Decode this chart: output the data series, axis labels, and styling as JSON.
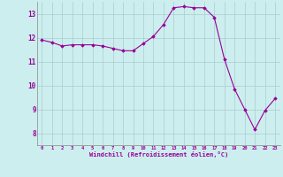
{
  "x": [
    0,
    1,
    2,
    3,
    4,
    5,
    6,
    7,
    8,
    9,
    10,
    11,
    12,
    13,
    14,
    15,
    16,
    17,
    18,
    19,
    20,
    21,
    22,
    23
  ],
  "y": [
    11.9,
    11.8,
    11.65,
    11.7,
    11.7,
    11.7,
    11.65,
    11.55,
    11.45,
    11.45,
    11.75,
    12.05,
    12.55,
    13.25,
    13.3,
    13.25,
    13.25,
    12.85,
    11.1,
    9.85,
    9.0,
    8.15,
    8.95,
    9.45
  ],
  "line_color": "#990099",
  "marker": "D",
  "marker_size": 1.8,
  "bg_color": "#cceeee",
  "grid_color": "#aacccc",
  "xlabel": "Windchill (Refroidissement éolien,°C)",
  "xlabel_color": "#990099",
  "tick_color": "#990099",
  "ylim": [
    7.5,
    13.5
  ],
  "xlim": [
    -0.5,
    23.5
  ],
  "yticks": [
    8,
    9,
    10,
    11,
    12,
    13
  ],
  "xticks": [
    0,
    1,
    2,
    3,
    4,
    5,
    6,
    7,
    8,
    9,
    10,
    11,
    12,
    13,
    14,
    15,
    16,
    17,
    18,
    19,
    20,
    21,
    22,
    23
  ]
}
